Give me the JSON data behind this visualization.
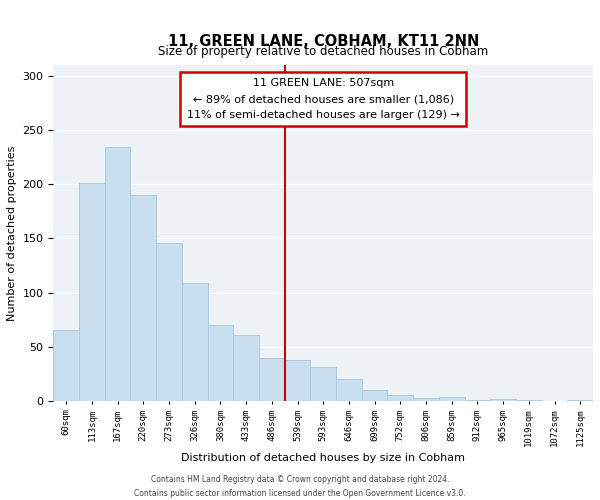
{
  "title": "11, GREEN LANE, COBHAM, KT11 2NN",
  "subtitle": "Size of property relative to detached houses in Cobham",
  "xlabel": "Distribution of detached houses by size in Cobham",
  "ylabel": "Number of detached properties",
  "bar_labels": [
    "60sqm",
    "113sqm",
    "167sqm",
    "220sqm",
    "273sqm",
    "326sqm",
    "380sqm",
    "433sqm",
    "486sqm",
    "539sqm",
    "593sqm",
    "646sqm",
    "699sqm",
    "752sqm",
    "806sqm",
    "859sqm",
    "912sqm",
    "965sqm",
    "1019sqm",
    "1072sqm",
    "1125sqm"
  ],
  "bar_values": [
    65,
    201,
    234,
    190,
    146,
    109,
    70,
    61,
    40,
    38,
    31,
    20,
    10,
    5,
    3,
    4,
    1,
    2,
    1,
    0,
    1
  ],
  "bar_color": "#c9dff0",
  "bar_edge_color": "#a8cce0",
  "vline_x": 8.5,
  "vline_color": "#cc0000",
  "annotation_title": "11 GREEN LANE: 507sqm",
  "annotation_line1": "← 89% of detached houses are smaller (1,086)",
  "annotation_line2": "11% of semi-detached houses are larger (129) →",
  "annotation_box_color": "#ffffff",
  "annotation_box_edge_color": "#cc0000",
  "ylim": [
    0,
    310
  ],
  "footnote1": "Contains HM Land Registry data © Crown copyright and database right 2024.",
  "footnote2": "Contains public sector information licensed under the Open Government Licence v3.0.",
  "bg_color": "#eef2f7"
}
